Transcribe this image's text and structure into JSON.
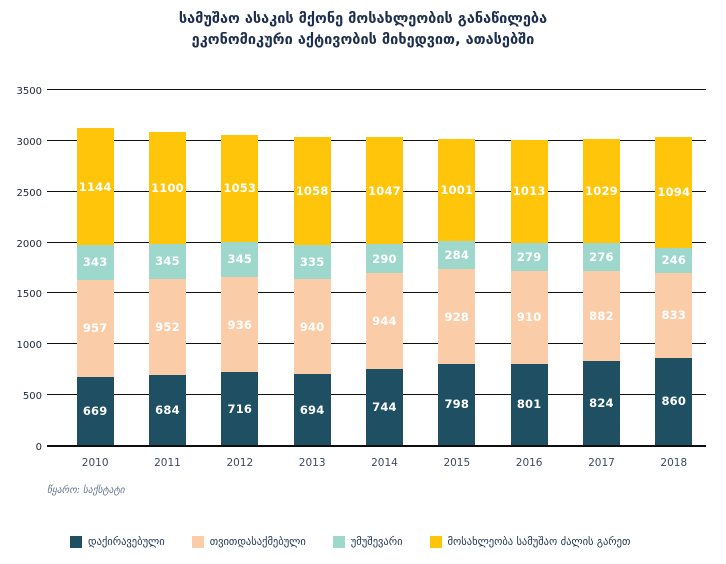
{
  "title": {
    "lines": [
      "სამუშაო ასაკის მქონე მოსახლეობის განაწილება",
      "ეკონომიკური აქტივობის მიხედვით, ათასებში"
    ],
    "color": "#1d2e4e"
  },
  "source": {
    "text": "წყარო: საქსტატი"
  },
  "chart_data": {
    "type": "bar",
    "stacked": true,
    "title": "სამუშაო ასაკის მქონე მოსახლეობის განაწილება ეკონომიკური აქტივობის მიხედვით, ათასებში",
    "xlabel": "",
    "ylabel": "",
    "categories": [
      "2010",
      "2011",
      "2012",
      "2013",
      "2014",
      "2015",
      "2016",
      "2017",
      "2018"
    ],
    "series": [
      {
        "name": "დაქირავებული",
        "color": "#1f4f63",
        "values": [
          669,
          684,
          716,
          694,
          744,
          798,
          801,
          824,
          860
        ]
      },
      {
        "name": "თვითდასაქმებული",
        "color": "#facda8",
        "values": [
          957,
          952,
          936,
          940,
          944,
          928,
          910,
          882,
          833
        ]
      },
      {
        "name": "უმუშევარი",
        "color": "#9ed8cc",
        "values": [
          343,
          345,
          345,
          335,
          290,
          284,
          279,
          276,
          246
        ]
      },
      {
        "name": "მოსახლეობა სამუშაო ძალის გარეთ",
        "color": "#fec50b",
        "values": [
          1144,
          1100,
          1053,
          1058,
          1047,
          1001,
          1013,
          1029,
          1094
        ]
      }
    ],
    "totals": [
      3113,
      3081,
      3050,
      3027,
      3025,
      3011,
      3003,
      3011,
      3033
    ],
    "ylim": [
      0,
      3500
    ],
    "yticks": [
      0,
      500,
      1000,
      1500,
      2000,
      2500,
      3000,
      3500
    ],
    "grid": true,
    "gridline_color": "#101010",
    "axis_color": "#0e0e0e",
    "value_label_color": "#ffffff",
    "legend_position": "bottom"
  }
}
